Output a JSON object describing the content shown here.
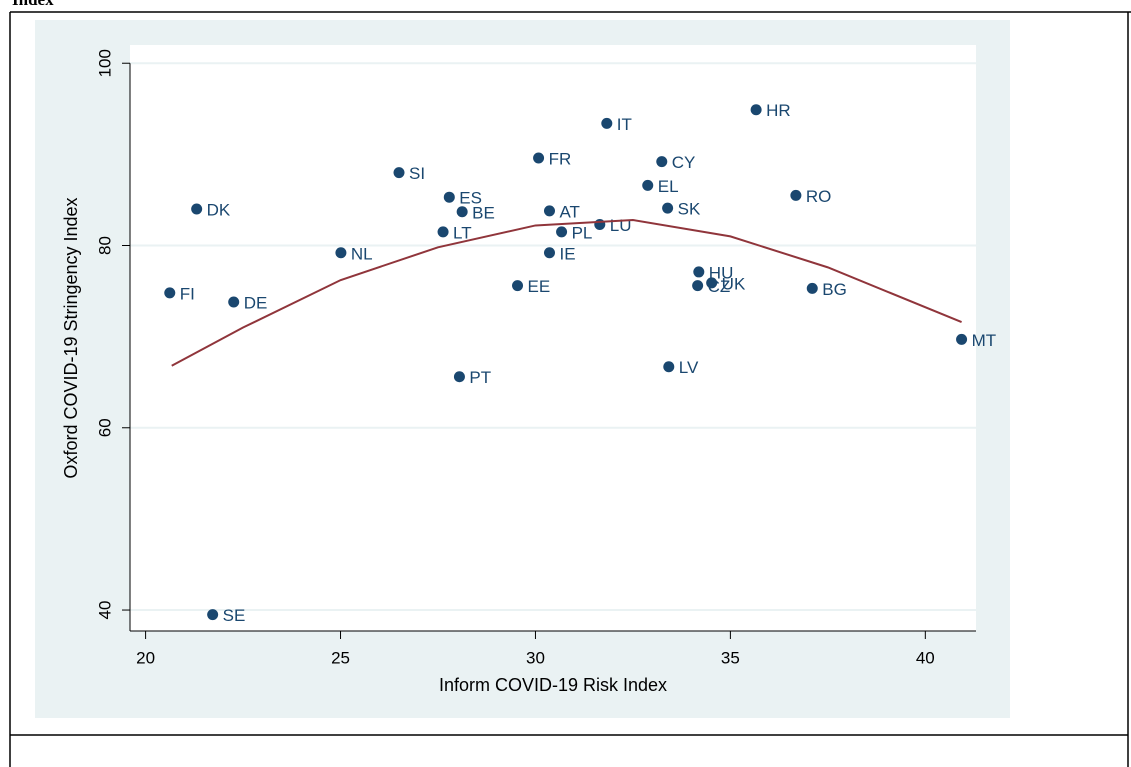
{
  "chart_data": {
    "type": "scatter",
    "title": "Index",
    "x_label": "Inform COVID-19 Risk Index",
    "y_label": "Oxford COVID-19 Stringency Index",
    "xlim": [
      19.6,
      41.3
    ],
    "ylim": [
      37.7,
      102
    ],
    "xticks": [
      20,
      25,
      30,
      35,
      40
    ],
    "yticks": [
      40,
      60,
      80,
      100
    ],
    "grid": true,
    "series": [
      {
        "type": "scatter",
        "color": "#1a476f",
        "x": [
          20.62,
          21.31,
          22.26,
          21.72,
          25.01,
          26.5,
          27.79,
          28.12,
          27.63,
          28.05,
          30.08,
          30.36,
          30.36,
          30.67,
          29.54,
          31.65,
          31.83,
          33.24,
          32.88,
          33.39,
          34.19,
          34.16,
          34.52,
          33.42,
          35.66,
          36.68,
          37.1,
          40.93
        ],
        "values": [
          74.8,
          84.0,
          73.8,
          39.5,
          79.2,
          88.0,
          85.3,
          83.7,
          81.5,
          65.6,
          89.6,
          83.8,
          79.2,
          81.5,
          75.6,
          82.3,
          93.4,
          89.2,
          86.6,
          84.1,
          77.1,
          75.6,
          75.9,
          66.7,
          94.9,
          85.5,
          75.3,
          69.7
        ],
        "labels": [
          "FI",
          "DK",
          "DE",
          "SE",
          "NL",
          "SI",
          "ES",
          "BE",
          "LT",
          "PT",
          "FR",
          "AT",
          "IE",
          "PL",
          "EE",
          "LU",
          "IT",
          "CY",
          "EL",
          "SK",
          "HU",
          "CZ",
          "UK",
          "LV",
          "HR",
          "RO",
          "BG",
          "MT"
        ]
      },
      {
        "type": "line",
        "color": "#90353b",
        "x": [
          20.67,
          22.5,
          25,
          27.5,
          30,
          32.5,
          35,
          37.5,
          40.93
        ],
        "values": [
          66.8,
          71.0,
          76.2,
          79.8,
          82.2,
          82.8,
          81.0,
          77.6,
          71.6
        ]
      }
    ]
  }
}
